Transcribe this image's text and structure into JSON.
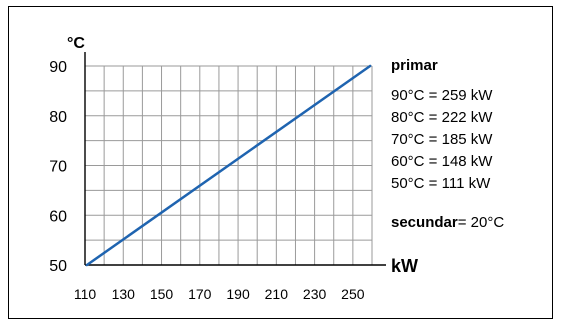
{
  "chart_data": {
    "type": "line",
    "ylabel": "°C",
    "xlabel": "kW",
    "x_ticks": [
      "110",
      "130",
      "150",
      "170",
      "190",
      "210",
      "230",
      "250"
    ],
    "y_ticks": [
      "50",
      "60",
      "70",
      "80",
      "90"
    ],
    "xlim": [
      110,
      260
    ],
    "ylim": [
      50,
      90
    ],
    "x_grid_step": 10,
    "y_grid_step": 5,
    "grid": true,
    "series": [
      {
        "x": [
          111,
          259
        ],
        "y": [
          50,
          90
        ],
        "color": "#1f64b0"
      }
    ],
    "legend": {
      "primary_title": "primar",
      "entries": [
        "90°C =  259 kW",
        "80°C =  222 kW",
        "70°C =  185 kW",
        "60°C =  148 kW",
        "50°C =  111 kW"
      ],
      "secondary_label": "secundar",
      "secondary_value": "= 20°C"
    }
  }
}
